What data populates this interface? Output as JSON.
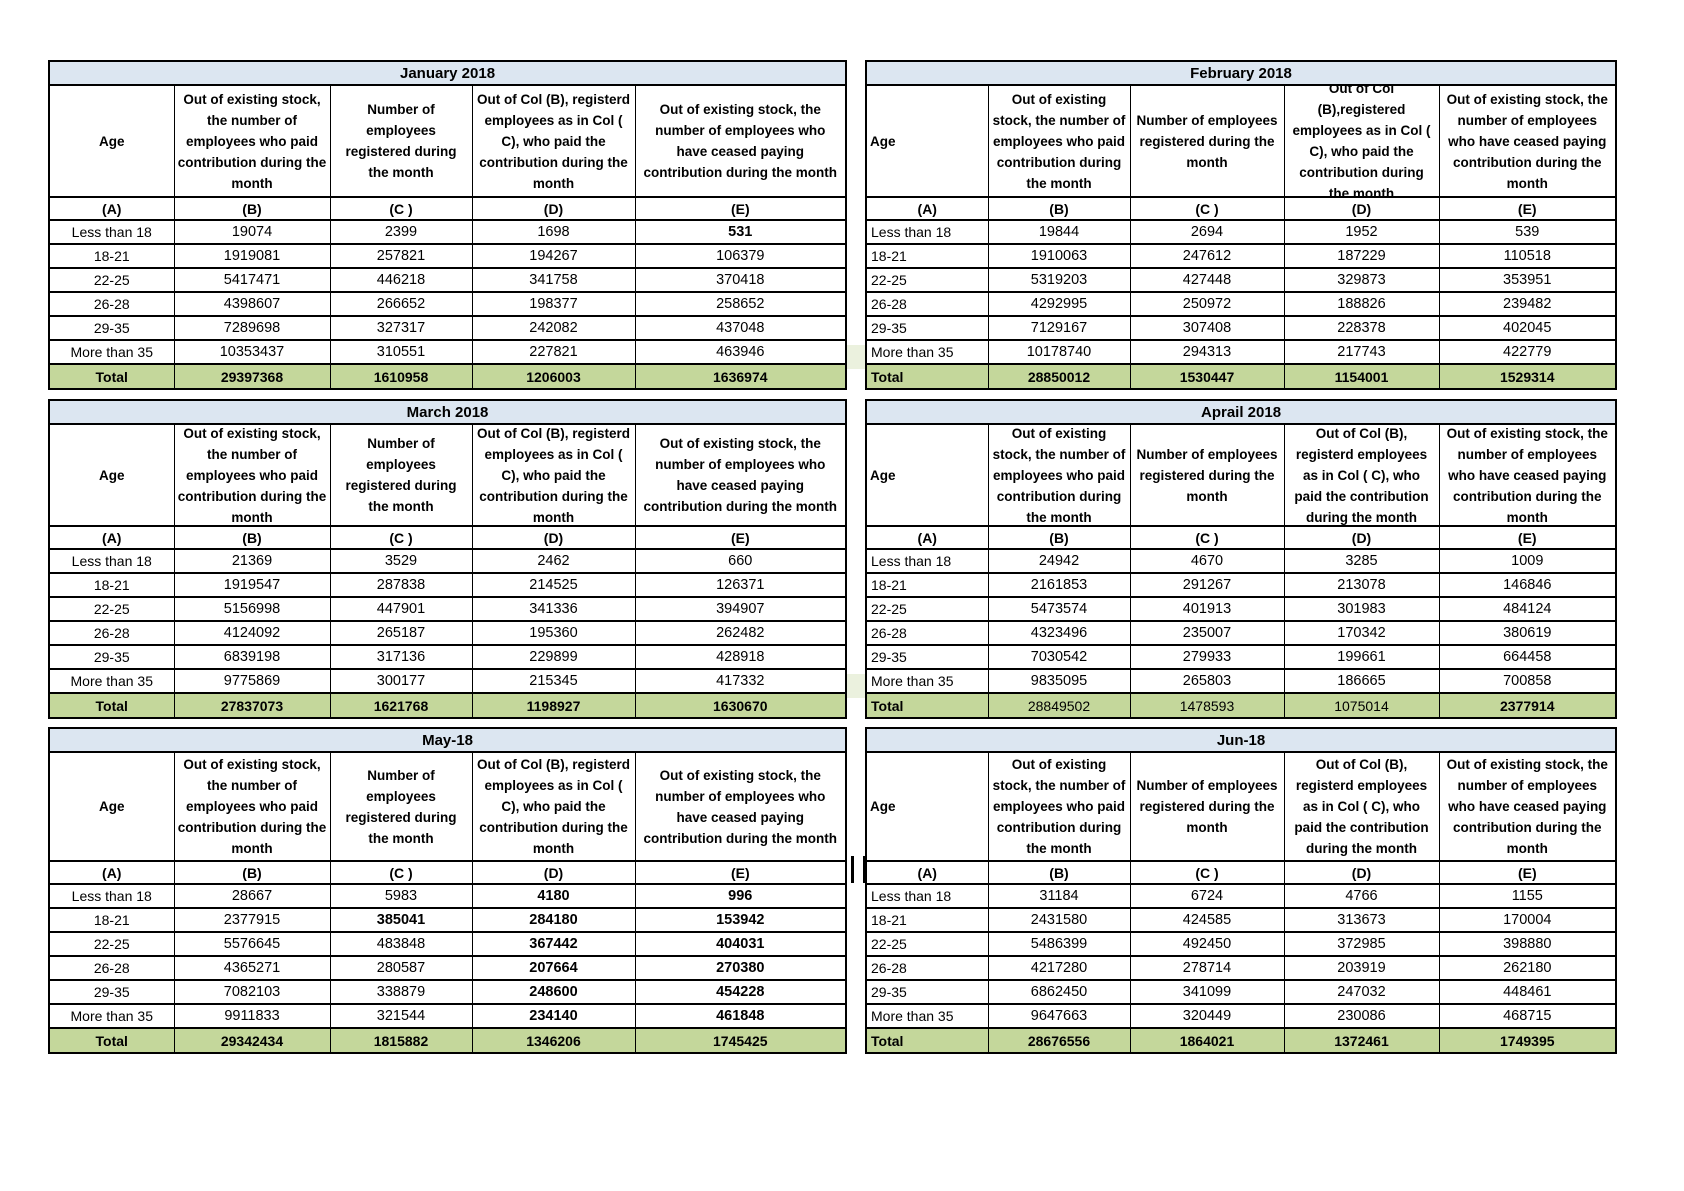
{
  "colors": {
    "title_bg": "#dce6f1",
    "total_row_bg": "#c4d79b",
    "value_green": "#76933c",
    "total_text_green": "#4f6228",
    "spacer_green": "#ebf1de",
    "grid_border": "#000000"
  },
  "col_letters": [
    "(A)",
    "(B)",
    "(C )",
    "(D)",
    "(E)"
  ],
  "age_groups": [
    "Less than 18",
    "18-21",
    "22-25",
    "26-28",
    "29-35",
    "More than 35"
  ],
  "total_label": "Total",
  "stray_text": "1206003",
  "months": [
    {
      "title": "January 2018",
      "headers": {
        "age": "Age",
        "b": "Out of existing stock, the number of employees who paid contribution during the month",
        "c": "Number of employees registered during the month",
        "d": "Out of Col (B), registerd employees as in Col ( C), who paid the contribution during the month",
        "e": "Out of existing stock, the number of  employees  who have ceased paying contribution during the month"
      },
      "letter_styles": [
        "b",
        "b",
        "b",
        "b",
        "b"
      ],
      "rows": [
        [
          "19074",
          "2399",
          "1698",
          "531"
        ],
        [
          "1919081",
          "257821",
          "194267",
          "106379"
        ],
        [
          "5417471",
          "446218",
          "341758",
          "370418"
        ],
        [
          "4398607",
          "266652",
          "198377",
          "258652"
        ],
        [
          "7289698",
          "327317",
          "242082",
          "437048"
        ],
        [
          "10353437",
          "310551",
          "227821",
          "463946"
        ]
      ],
      "row_styles": [
        [
          "k",
          "k",
          "k",
          "b"
        ],
        [
          "k",
          "k",
          "k",
          "g"
        ],
        [
          "k",
          "k",
          "k",
          "g"
        ],
        [
          "k",
          "k",
          "k",
          "g"
        ],
        [
          "k",
          "k",
          "k",
          "g"
        ],
        [
          "k",
          "k",
          "k",
          "g"
        ]
      ],
      "total": [
        "29397368",
        "1610958",
        "1206003",
        "1636974"
      ],
      "total_styles": [
        "G",
        "G",
        "G",
        "G"
      ],
      "total_label_style": "G"
    },
    {
      "title": "February 2018",
      "headers": {
        "age": "Age",
        "b": "Out of existing stock, the number of employees who paid contribution during the month",
        "c": "Number of employees registered during the month",
        "d": "Out of Col (B),registered employees as in Col ( C), who paid the contribution during the month",
        "e": "Out of existing stock, the number of employees  who have ceased paying contribution during the month"
      },
      "letter_styles": [
        "b",
        "b",
        "b",
        "b",
        "b"
      ],
      "rows": [
        [
          "19844",
          "2694",
          "1952",
          "539"
        ],
        [
          "1910063",
          "247612",
          "187229",
          "110518"
        ],
        [
          "5319203",
          "427448",
          "329873",
          "353951"
        ],
        [
          "4292995",
          "250972",
          "188826",
          "239482"
        ],
        [
          "7129167",
          "307408",
          "228378",
          "402045"
        ],
        [
          "10178740",
          "294313",
          "217743",
          "422779"
        ]
      ],
      "row_styles": [
        [
          "k",
          "k",
          "k",
          "k"
        ],
        [
          "k",
          "k",
          "k",
          "g"
        ],
        [
          "k",
          "k",
          "k",
          "g"
        ],
        [
          "k",
          "k",
          "k",
          "g"
        ],
        [
          "k",
          "k",
          "k",
          "g"
        ],
        [
          "k",
          "k",
          "k",
          "g"
        ]
      ],
      "total": [
        "28850012",
        "1530447",
        "1154001",
        "1529314"
      ],
      "total_styles": [
        "G",
        "G",
        "G",
        "G"
      ],
      "total_label_style": "G"
    },
    {
      "title": "March 2018",
      "headers": {
        "age": "Age",
        "b": "Out of existing stock, the number of employees who paid contribution during the month",
        "c": "Number of employees registered during the month",
        "d": "Out of Col (B), registerd employees as in Col ( C), who paid the contribution during the month",
        "e": "Out of existing stock, the number of  employees  who have ceased paying contribution during the month"
      },
      "letter_styles": [
        "b",
        "b",
        "b",
        "b",
        "B"
      ],
      "rows": [
        [
          "21369",
          "3529",
          "2462",
          "660"
        ],
        [
          "1919547",
          "287838",
          "214525",
          "126371"
        ],
        [
          "5156998",
          "447901",
          "341336",
          "394907"
        ],
        [
          "4124092",
          "265187",
          "195360",
          "262482"
        ],
        [
          "6839198",
          "317136",
          "229899",
          "428918"
        ],
        [
          "9775869",
          "300177",
          "215345",
          "417332"
        ]
      ],
      "row_styles": [
        [
          "k",
          "k",
          "k",
          "k"
        ],
        [
          "k",
          "k",
          "k",
          "g"
        ],
        [
          "k",
          "k",
          "k",
          "g"
        ],
        [
          "k",
          "k",
          "k",
          "g"
        ],
        [
          "k",
          "k",
          "k",
          "g"
        ],
        [
          "k",
          "k",
          "k",
          "g"
        ]
      ],
      "total": [
        "27837073",
        "1621768",
        "1198927",
        "1630670"
      ],
      "total_styles": [
        "G",
        "G",
        "G",
        "G"
      ],
      "total_label_style": "G"
    },
    {
      "title": "Aprail 2018",
      "headers": {
        "age": "Age",
        "b": "Out of existing stock, the number of employees who paid contribution during the month",
        "c": "Number of employees registered during the month",
        "d": "Out of Col (B), registerd employees as in Col ( C), who paid the contribution during the month",
        "e": "Out of existing stock, the number of employees  who have ceased paying contribution during the month"
      },
      "letter_styles": [
        "b",
        "b",
        "b",
        "b",
        "b"
      ],
      "rows": [
        [
          "24942",
          "4670",
          "3285",
          "1009"
        ],
        [
          "2161853",
          "291267",
          "213078",
          "146846"
        ],
        [
          "5473574",
          "401913",
          "301983",
          "484124"
        ],
        [
          "4323496",
          "235007",
          "170342",
          "380619"
        ],
        [
          "7030542",
          "279933",
          "199661",
          "664458"
        ],
        [
          "9835095",
          "265803",
          "186665",
          "700858"
        ]
      ],
      "row_styles": [
        [
          "k",
          "k",
          "k",
          "k"
        ],
        [
          "k",
          "k",
          "k",
          "k"
        ],
        [
          "k",
          "k",
          "k",
          "k"
        ],
        [
          "k",
          "k",
          "k",
          "k"
        ],
        [
          "k",
          "k",
          "k",
          "k"
        ],
        [
          "k",
          "k",
          "k",
          "k"
        ]
      ],
      "total": [
        "28849502",
        "1478593",
        "1075014",
        "2377914"
      ],
      "total_styles": [
        "g",
        "g",
        "g",
        "G"
      ],
      "total_label_style": "G"
    },
    {
      "title": "May-18",
      "headers": {
        "age": "Age",
        "b": "Out of existing stock, the number of employees who paid contribution during the month",
        "c": "Number of employees registered during the month",
        "d": "Out of Col (B), registerd employees as in Col ( C), who paid the contribution during the month",
        "e": "Out of existing stock, the number of  employees  who have ceased paying contribution during the month"
      },
      "letter_styles": [
        "b",
        "b",
        "b",
        "b",
        "b"
      ],
      "rows": [
        [
          "28667",
          "5983",
          "4180",
          "996"
        ],
        [
          "2377915",
          "385041",
          "284180",
          "153942"
        ],
        [
          "5576645",
          "483848",
          "367442",
          "404031"
        ],
        [
          "4365271",
          "280587",
          "207664",
          "270380"
        ],
        [
          "7082103",
          "338879",
          "248600",
          "454228"
        ],
        [
          "9911833",
          "321544",
          "234140",
          "461848"
        ]
      ],
      "row_styles": [
        [
          "k",
          "k",
          "G",
          "G"
        ],
        [
          "k",
          "G",
          "G",
          "G"
        ],
        [
          "k",
          "k",
          "G",
          "G"
        ],
        [
          "k",
          "k",
          "G",
          "G"
        ],
        [
          "k",
          "k",
          "G",
          "G"
        ],
        [
          "k",
          "k",
          "G",
          "G"
        ]
      ],
      "total": [
        "29342434",
        "1815882",
        "1346206",
        "1745425"
      ],
      "total_styles": [
        "G",
        "G",
        "G",
        "G"
      ],
      "total_label_style": "G"
    },
    {
      "title": "Jun-18",
      "headers": {
        "age": "Age",
        "b": "Out of existing stock, the number of employees who paid contribution during the month",
        "c": "Number of employees registered during the month",
        "d": "Out of Col (B), registerd employees as in Col ( C), who paid the contribution during the month",
        "e": "Out of existing stock, the number of employees  who have ceased paying contribution during the month"
      },
      "letter_styles": [
        "b",
        "b",
        "b",
        "b",
        "b"
      ],
      "rows": [
        [
          "31184",
          "6724",
          "4766",
          "1155"
        ],
        [
          "2431580",
          "424585",
          "313673",
          "170004"
        ],
        [
          "5486399",
          "492450",
          "372985",
          "398880"
        ],
        [
          "4217280",
          "278714",
          "203919",
          "262180"
        ],
        [
          "6862450",
          "341099",
          "247032",
          "448461"
        ],
        [
          "9647663",
          "320449",
          "230086",
          "468715"
        ]
      ],
      "row_styles": [
        [
          "k",
          "k",
          "k",
          "k"
        ],
        [
          "k",
          "k",
          "k",
          "k"
        ],
        [
          "k",
          "k",
          "k",
          "k"
        ],
        [
          "k",
          "k",
          "k",
          "k"
        ],
        [
          "k",
          "k",
          "k",
          "k"
        ],
        [
          "k",
          "k",
          "k",
          "k"
        ]
      ],
      "total": [
        "28676556",
        "1864021",
        "1372461",
        "1749395"
      ],
      "total_styles": [
        "G",
        "G",
        "G",
        "G"
      ],
      "total_label_style": "G"
    }
  ]
}
